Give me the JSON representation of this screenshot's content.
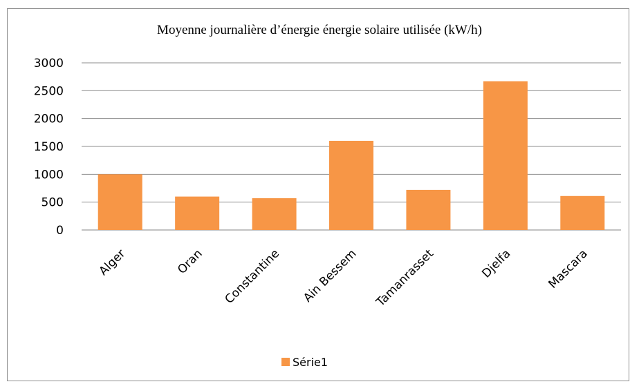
{
  "chart_data": {
    "type": "bar",
    "title": "Moyenne journalière d’énergie énergie solaire utilisée (kW/h)",
    "categories": [
      "Alger",
      "Oran",
      "Constantine",
      "Ain Bessem",
      "Tamanrasset",
      "Djelfa",
      "Mascara"
    ],
    "series": [
      {
        "name": "Série1",
        "values": [
          1000,
          600,
          570,
          1600,
          720,
          2670,
          610
        ],
        "color": "#f79646"
      }
    ],
    "yticks": [
      "0",
      "500",
      "1000",
      "1500",
      "2000",
      "2500",
      "3000"
    ],
    "ylim": [
      0,
      3000
    ],
    "grid": true,
    "legend": "bottom"
  }
}
